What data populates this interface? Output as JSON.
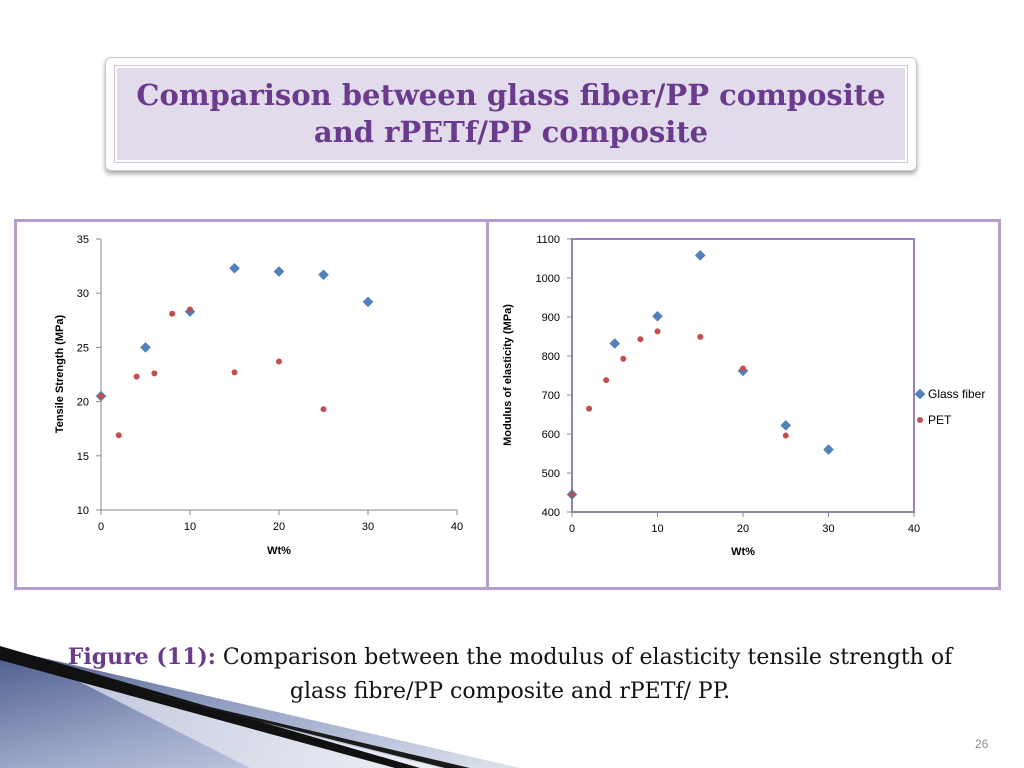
{
  "slide": {
    "title": "Comparison between glass fiber/PP composite\nand rPETf/PP composite",
    "caption_lead": "Figure (11):",
    "caption_body": "Comparison between the modulus of elasticity tensile strength of glass fibre/PP composite and rPETf/ PP.",
    "page_number": "26"
  },
  "chart_data": [
    {
      "type": "scatter",
      "title": "",
      "xlabel": "Wt%",
      "ylabel": "Tensile Strength (MPa)",
      "xlim": [
        0,
        40
      ],
      "ylim": [
        10,
        35
      ],
      "x_ticks": [
        0,
        10,
        20,
        30,
        40
      ],
      "y_ticks": [
        10,
        15,
        20,
        25,
        30,
        35
      ],
      "grid": false,
      "legend": "none",
      "series": [
        {
          "marker": "diamond",
          "color": "#4f81bd",
          "x": [
            0,
            5,
            10,
            15,
            20,
            25,
            30
          ],
          "y": [
            20.5,
            25,
            28.3,
            32.3,
            32,
            31.7,
            29.2
          ]
        },
        {
          "marker": "circle",
          "color": "#c0504d",
          "x": [
            0,
            2,
            4,
            6,
            8,
            10,
            15,
            20,
            25
          ],
          "y": [
            20.5,
            16.9,
            22.3,
            22.6,
            28.1,
            28.5,
            22.7,
            23.7,
            19.3
          ]
        }
      ]
    },
    {
      "type": "scatter",
      "title": "",
      "xlabel": "Wt%",
      "ylabel": "Modulus of elasticity (MPa)",
      "xlim": [
        0,
        40
      ],
      "ylim": [
        400,
        1100
      ],
      "x_ticks": [
        0,
        10,
        20,
        30,
        40
      ],
      "y_ticks": [
        400,
        500,
        600,
        700,
        800,
        900,
        1000,
        1100
      ],
      "grid": false,
      "legend": "right",
      "series": [
        {
          "name": "Glass fiber",
          "marker": "diamond",
          "color": "#4f81bd",
          "x": [
            0,
            5,
            10,
            15,
            20,
            25,
            30
          ],
          "y": [
            445,
            832,
            902,
            1058,
            762,
            622,
            560
          ]
        },
        {
          "name": "PET",
          "marker": "circle",
          "color": "#c0504d",
          "x": [
            0,
            2,
            4,
            6,
            8,
            10,
            15,
            20,
            25
          ],
          "y": [
            445,
            665,
            738,
            793,
            843,
            863,
            849,
            768,
            596
          ]
        }
      ]
    }
  ]
}
